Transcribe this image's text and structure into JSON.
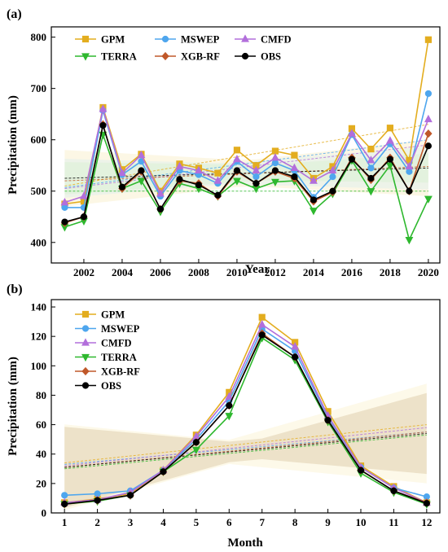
{
  "chart_data": [
    {
      "panel": "(a)",
      "type": "line",
      "xlabel": "Year",
      "ylabel": "Precipitation (mm)",
      "x": [
        2001,
        2002,
        2003,
        2004,
        2005,
        2006,
        2007,
        2008,
        2009,
        2010,
        2011,
        2012,
        2013,
        2014,
        2015,
        2016,
        2017,
        2018,
        2019,
        2020
      ],
      "xticks": [
        "2002",
        "2004",
        "2006",
        "2008",
        "2010",
        "2012",
        "2014",
        "2016",
        "2018",
        "2020"
      ],
      "yticks": [
        "400",
        "500",
        "600",
        "700",
        "800"
      ],
      "xlim": [
        2000.3,
        2020.6
      ],
      "ylim": [
        360,
        820
      ],
      "legend_position": "top-left",
      "series": [
        {
          "name": "GPM",
          "color": "#E3AD1F",
          "marker": "square",
          "values": [
            475,
            480,
            663,
            542,
            572,
            500,
            553,
            545,
            535,
            580,
            550,
            578,
            570,
            525,
            548,
            622,
            582,
            623,
            560,
            795
          ],
          "trend": [
            510,
            630
          ]
        },
        {
          "name": "MSWEP",
          "color": "#4EA6EE",
          "marker": "circle",
          "values": [
            468,
            468,
            657,
            532,
            558,
            490,
            540,
            532,
            515,
            558,
            528,
            555,
            540,
            488,
            528,
            610,
            545,
            592,
            538,
            690
          ],
          "trend": [
            507,
            600
          ]
        },
        {
          "name": "CMFD",
          "color": "#B26FDB",
          "marker": "triangle-up",
          "values": [
            478,
            490,
            660,
            535,
            570,
            495,
            548,
            540,
            520,
            562,
            540,
            565,
            545,
            520,
            540,
            612,
            560,
            598,
            548,
            640
          ],
          "trend": [
            505,
            590
          ]
        },
        {
          "name": "TERRA",
          "color": "#2EB82E",
          "marker": "triangle-down",
          "values": [
            430,
            442,
            610,
            505,
            520,
            460,
            515,
            505,
            490,
            520,
            505,
            518,
            520,
            462,
            495,
            560,
            500,
            550,
            405,
            485
          ],
          "trend": [
            500,
            500
          ]
        },
        {
          "name": "XGB-RF",
          "color": "#C0582A",
          "marker": "diamond",
          "values": [
            438,
            450,
            630,
            505,
            538,
            465,
            520,
            515,
            490,
            538,
            515,
            538,
            525,
            480,
            498,
            565,
            522,
            565,
            500,
            612
          ],
          "trend": [
            520,
            548
          ]
        },
        {
          "name": "OBS",
          "color": "#000000",
          "marker": "circle",
          "values": [
            440,
            450,
            628,
            508,
            540,
            465,
            523,
            512,
            492,
            540,
            515,
            540,
            528,
            483,
            500,
            562,
            525,
            562,
            500,
            588
          ],
          "trend": [
            525,
            545
          ]
        }
      ]
    },
    {
      "panel": "(b)",
      "type": "line",
      "xlabel": "Month",
      "ylabel": "Precipitation (mm)",
      "x": [
        1,
        2,
        3,
        4,
        5,
        6,
        7,
        8,
        9,
        10,
        11,
        12
      ],
      "xticks": [
        "1",
        "2",
        "3",
        "4",
        "5",
        "6",
        "7",
        "8",
        "9",
        "10",
        "11",
        "12"
      ],
      "yticks": [
        "0",
        "20",
        "40",
        "60",
        "80",
        "100",
        "120",
        "140"
      ],
      "xlim": [
        0.6,
        12.4
      ],
      "ylim": [
        0,
        145
      ],
      "legend_position": "top-left",
      "series": [
        {
          "name": "GPM",
          "color": "#E3AD1F",
          "marker": "square",
          "values": [
            7,
            9.5,
            13,
            29,
            53,
            82,
            133,
            116,
            69,
            32,
            18,
            7
          ],
          "trend": [
            34,
            60
          ]
        },
        {
          "name": "MSWEP",
          "color": "#4EA6EE",
          "marker": "circle",
          "values": [
            12,
            13,
            15,
            29,
            50,
            76,
            125,
            110,
            65,
            31,
            17,
            11
          ],
          "trend": [
            33,
            55
          ]
        },
        {
          "name": "CMFD",
          "color": "#B26FDB",
          "marker": "triangle-up",
          "values": [
            7,
            9,
            14,
            29,
            52,
            79,
            128,
            113,
            66,
            31,
            17,
            7
          ],
          "trend": [
            32,
            58
          ]
        },
        {
          "name": "TERRA",
          "color": "#2EB82E",
          "marker": "triangle-down",
          "values": [
            6,
            8,
            12,
            28,
            43,
            66,
            119,
            104,
            62,
            27,
            14,
            6
          ],
          "trend": [
            30,
            53
          ]
        },
        {
          "name": "XGB-RF",
          "color": "#C0582A",
          "marker": "diamond",
          "values": [
            6,
            8.5,
            12,
            28,
            48,
            73,
            122,
            106,
            63,
            29,
            15,
            7
          ],
          "trend": [
            31,
            55
          ]
        },
        {
          "name": "OBS",
          "color": "#000000",
          "marker": "circle",
          "values": [
            6,
            8.5,
            12,
            28,
            48,
            73,
            121,
            106,
            63,
            29,
            15,
            6.5
          ],
          "trend": [
            31,
            54
          ]
        }
      ]
    }
  ]
}
